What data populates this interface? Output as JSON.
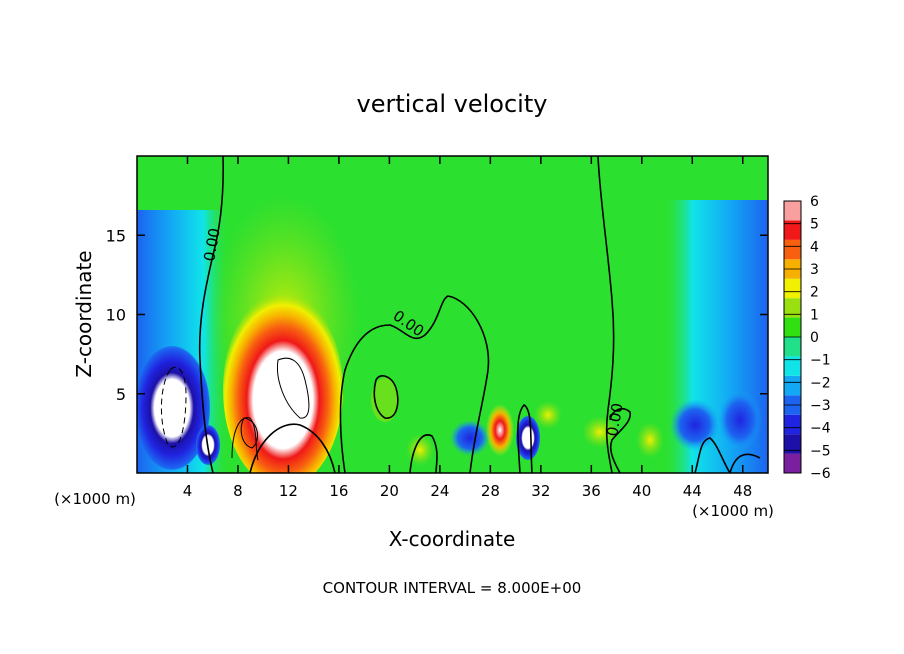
{
  "chart_data": {
    "type": "heatmap",
    "title": "vertical velocity",
    "xlabel": "X-coordinate",
    "ylabel": "Z-coordinate",
    "x_unit_left": "(×1000 m)",
    "x_unit_right": "(×1000 m)",
    "footer": "CONTOUR INTERVAL = 8.000E+00",
    "xlim": [
      0,
      50
    ],
    "ylim": [
      0,
      20
    ],
    "xticks": [
      4,
      8,
      12,
      16,
      20,
      24,
      28,
      32,
      36,
      40,
      44,
      48
    ],
    "yticks": [
      5,
      10,
      15
    ],
    "xtick_labels": [
      "4",
      "8",
      "12",
      "16",
      "20",
      "24",
      "28",
      "32",
      "36",
      "40",
      "44",
      "48"
    ],
    "ytick_labels": [
      "5",
      "10",
      "15"
    ],
    "colorbar": {
      "min": -6,
      "max": 6,
      "labels": [
        "6",
        "5",
        "4",
        "3",
        "2",
        "1",
        "0",
        "−1",
        "−2",
        "−3",
        "−4",
        "−5",
        "−6"
      ],
      "colors": [
        "#7a1fa0",
        "#1c10a8",
        "#2024e0",
        "#1c64f0",
        "#12a8f4",
        "#10e4e8",
        "#20e08a",
        "#30e010",
        "#9ae010",
        "#f0f000",
        "#f8b000",
        "#f86010",
        "#f01818",
        "#f8a0a0"
      ]
    },
    "features": [
      {
        "kind": "updraft-core",
        "label": "0.00",
        "x": 11,
        "z": 5,
        "peak": ">6"
      },
      {
        "kind": "downdraft-core",
        "x": 4,
        "z": 4.5,
        "peak": "<-6"
      },
      {
        "kind": "contour",
        "label": "0.00",
        "x": 6.5,
        "z": 14.5
      },
      {
        "kind": "contour",
        "label": "0.00",
        "x": 22,
        "z": 9.5
      },
      {
        "kind": "contour",
        "label": "0.00",
        "x": 37.5,
        "z": 3
      }
    ],
    "contour_labels": [
      "0.00",
      "0.00",
      "0.00"
    ]
  }
}
